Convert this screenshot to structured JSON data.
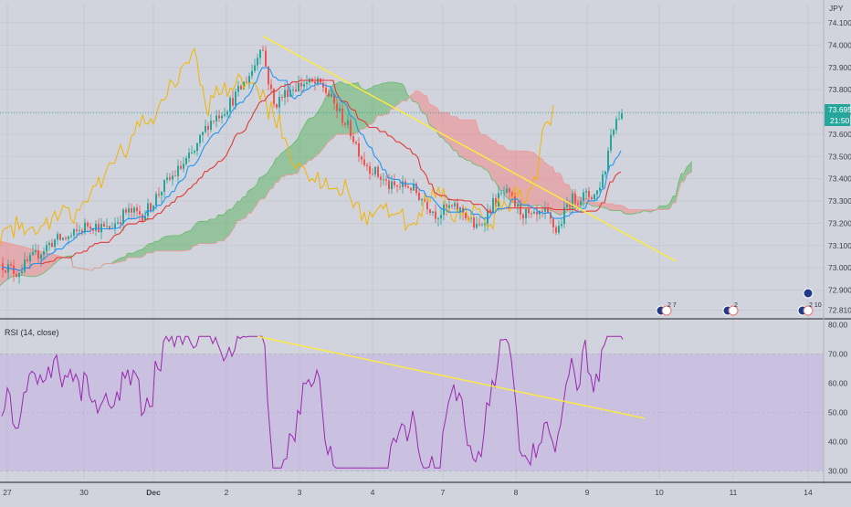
{
  "header": {
    "currency": "JPY"
  },
  "price_badge": {
    "price": "73.695",
    "countdown": "21:50"
  },
  "rsi_panel": {
    "title": "RSI (14, close)"
  },
  "event_badges": [
    {
      "label": "2",
      "extra": "7"
    },
    {
      "label": "2",
      "extra": ""
    },
    {
      "label": "2",
      "extra": "10"
    }
  ],
  "colors": {
    "background": "#d1d4dc",
    "bull_candle": "#26a69a",
    "bear_candle": "#ef5350",
    "tenkan": "#2196f3",
    "kijun": "#e53935",
    "chikou": "#f4b400",
    "cloud_bull": "#4caf50",
    "cloud_bear": "#f0888a",
    "trendline": "#ffeb3b",
    "rsi_line": "#9c27b0",
    "rsi_band": "#c2b0e2"
  },
  "chart_data": [
    {
      "type": "candlestick",
      "ylim": [
        72.81,
        74.1
      ],
      "yticks": [
        "74.100",
        "74.000",
        "73.900",
        "73.800",
        "73.700",
        "73.600",
        "73.500",
        "73.400",
        "73.300",
        "73.200",
        "73.100",
        "73.000",
        "72.900",
        "72.810"
      ],
      "xticks": [
        "27",
        "30",
        "Dec",
        "2",
        "3",
        "4",
        "7",
        "8",
        "9",
        "10",
        "11",
        "14"
      ],
      "indicators": [
        "Ichimoku Cloud",
        "Trendline"
      ],
      "trendline": {
        "start": [
          "2 Dec",
          74.04
        ],
        "end": [
          "10 Dec",
          73.03
        ]
      }
    },
    {
      "type": "line",
      "title": "RSI (14, close)",
      "ylim": [
        27,
        80
      ],
      "yticks": [
        "80.00",
        "70.00",
        "60.00",
        "50.00",
        "40.00",
        "30.00"
      ],
      "band": [
        30,
        70
      ],
      "trendline": {
        "start": [
          "2 Dec",
          76
        ],
        "end": [
          "10 Dec",
          48
        ]
      }
    }
  ]
}
